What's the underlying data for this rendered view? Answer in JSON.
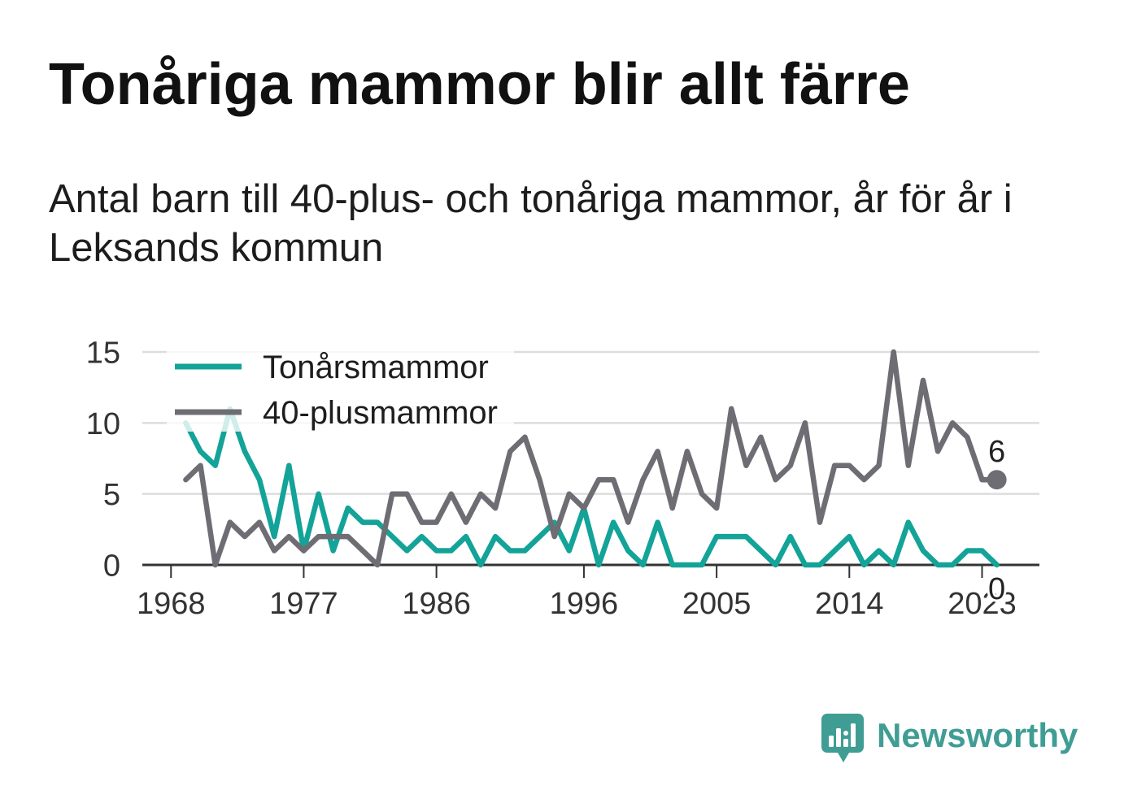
{
  "chart_data": {
    "type": "line",
    "title": "Tonåriga mammor blir allt färre",
    "subtitle": "Antal barn till 40-plus- och tonåriga mammor, år för år i Leksands kommun",
    "xlabel": "",
    "ylabel": "",
    "x": [
      1969,
      1970,
      1971,
      1972,
      1973,
      1974,
      1975,
      1976,
      1977,
      1978,
      1979,
      1980,
      1981,
      1982,
      1983,
      1984,
      1985,
      1986,
      1987,
      1988,
      1989,
      1990,
      1991,
      1992,
      1993,
      1994,
      1995,
      1996,
      1997,
      1998,
      1999,
      2000,
      2001,
      2002,
      2003,
      2004,
      2005,
      2006,
      2007,
      2008,
      2009,
      2010,
      2011,
      2012,
      2013,
      2014,
      2015,
      2016,
      2017,
      2018,
      2019,
      2020,
      2021,
      2022,
      2023,
      2024
    ],
    "series": [
      {
        "name": "Tonårsmammor",
        "color": "#13a398",
        "values": [
          10,
          8,
          7,
          11,
          8,
          6,
          2,
          7,
          1,
          5,
          1,
          4,
          3,
          3,
          2,
          1,
          2,
          1,
          1,
          2,
          0,
          2,
          1,
          1,
          2,
          3,
          1,
          4,
          0,
          3,
          1,
          0,
          3,
          0,
          0,
          0,
          2,
          2,
          2,
          1,
          0,
          2,
          0,
          0,
          1,
          2,
          0,
          1,
          0,
          3,
          1,
          0,
          0,
          1,
          1,
          0
        ]
      },
      {
        "name": "40-plusmammor",
        "color": "#6e6d74",
        "values": [
          6,
          7,
          0,
          3,
          2,
          3,
          1,
          2,
          1,
          2,
          2,
          2,
          1,
          0,
          5,
          5,
          3,
          3,
          5,
          3,
          5,
          4,
          8,
          9,
          6,
          2,
          5,
          4,
          6,
          6,
          3,
          6,
          8,
          4,
          8,
          5,
          4,
          11,
          7,
          9,
          6,
          7,
          10,
          3,
          7,
          7,
          6,
          7,
          15,
          7,
          13,
          8,
          10,
          9,
          6,
          6
        ]
      }
    ],
    "x_ticks": [
      1968,
      1977,
      1986,
      1996,
      2005,
      2014,
      2023
    ],
    "y_ticks": [
      0,
      5,
      10,
      15
    ],
    "xlim": [
      1966,
      2027
    ],
    "ylim": [
      0,
      15
    ],
    "grid": true,
    "legend": {
      "position": "top-left"
    },
    "annotations": [
      {
        "series": "40-plusmammor",
        "x": 2024,
        "text": "6",
        "position": "above",
        "marker": "dot"
      },
      {
        "series": "Tonårsmammor",
        "x": 2024,
        "text": "0",
        "position": "below"
      }
    ]
  },
  "colors": {
    "grid": "#dddddd",
    "axis": "#333333",
    "brand": "#3f9d94"
  },
  "brand": {
    "name": "Newsworthy",
    "icon": "newsworthy-logo-icon"
  }
}
